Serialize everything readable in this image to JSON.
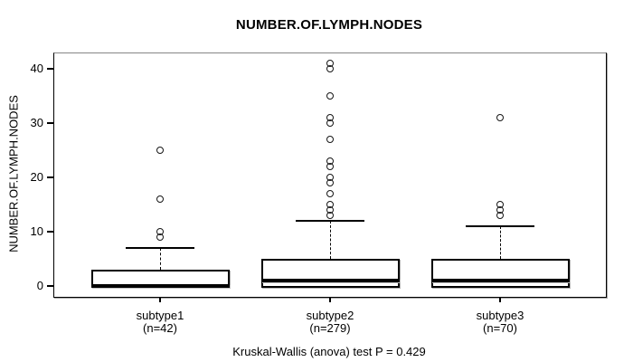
{
  "chart_data": {
    "type": "boxplot",
    "title": "NUMBER.OF.LYMPH.NODES",
    "ylabel": "NUMBER.OF.LYMPH.NODES",
    "xlabel": "",
    "stat_test": "Kruskal-Wallis (anova) test P = 0.429",
    "y_ticks": [
      0,
      10,
      20,
      30,
      40
    ],
    "ylim": [
      -2,
      42.8
    ],
    "grid": false,
    "legend": "none",
    "groups": [
      {
        "label": "subtype1",
        "n_label": "(n=42)",
        "n": 42,
        "q1": 0,
        "median": 0,
        "q3": 3,
        "whisker_low": 0,
        "whisker_high": 7,
        "outliers": [
          9,
          10,
          16,
          25
        ]
      },
      {
        "label": "subtype2",
        "n_label": "(n=279)",
        "n": 279,
        "q1": 0,
        "median": 1,
        "q3": 5,
        "whisker_low": 0,
        "whisker_high": 12,
        "outliers": [
          13,
          14,
          15,
          17,
          19,
          20,
          22,
          23,
          27,
          30,
          31,
          35,
          40,
          41
        ]
      },
      {
        "label": "subtype3",
        "n_label": "(n=70)",
        "n": 70,
        "q1": 0,
        "median": 1,
        "q3": 5,
        "whisker_low": 0,
        "whisker_high": 11,
        "outliers": [
          13,
          14,
          15,
          31
        ]
      }
    ]
  }
}
